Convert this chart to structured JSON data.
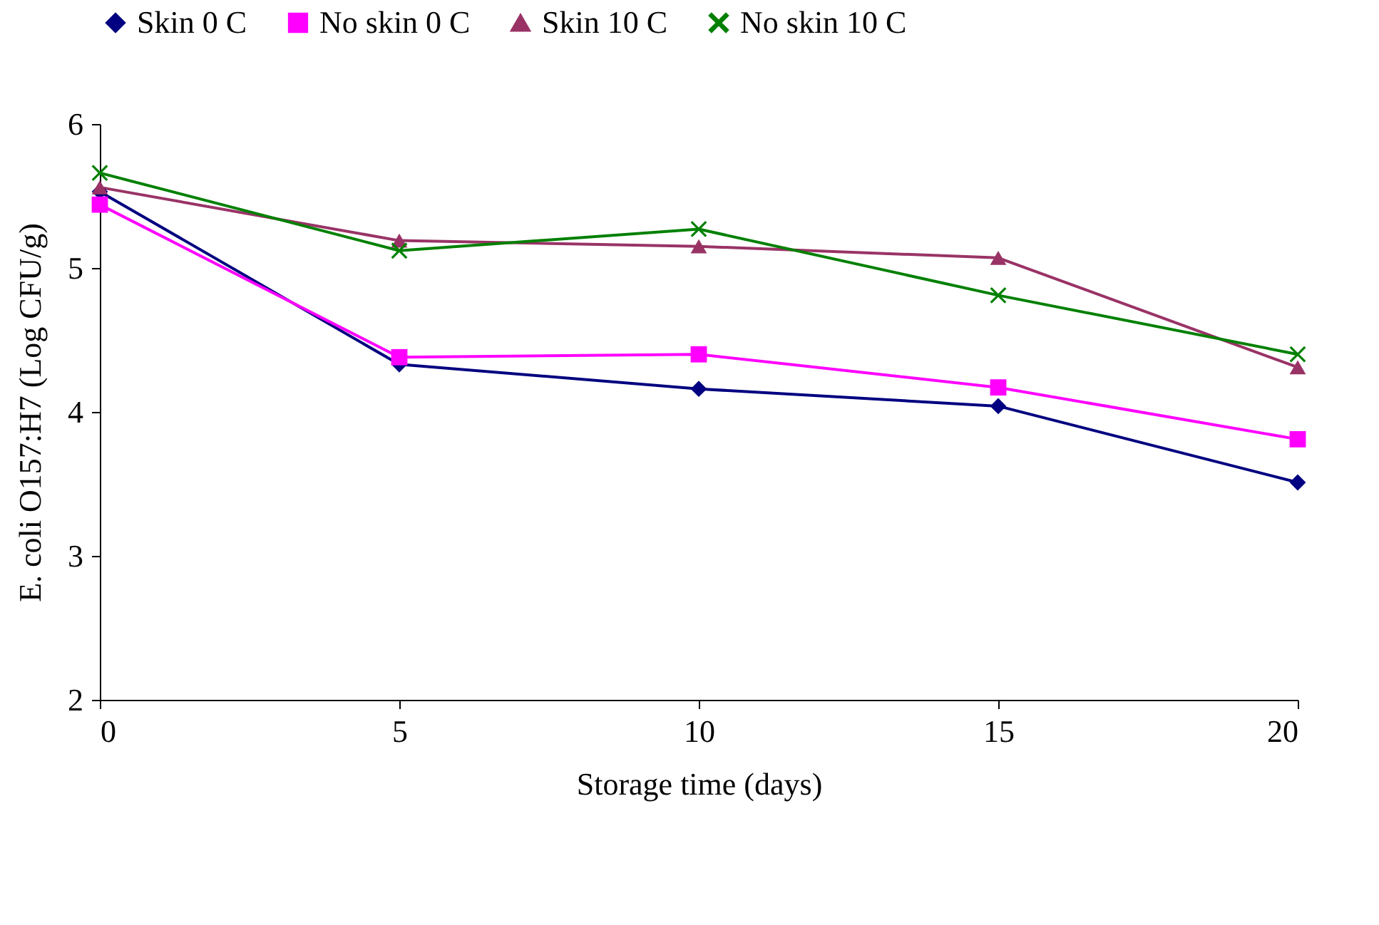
{
  "chart_data": {
    "type": "line",
    "xlabel": "Storage time (days)",
    "ylabel": "E. coli O157:H7 (Log CFU/g)",
    "x": [
      0,
      5,
      10,
      15,
      20
    ],
    "xlim": [
      0,
      20
    ],
    "xticks": [
      0,
      5,
      10,
      15,
      20
    ],
    "ylim": [
      2,
      6
    ],
    "yticks": [
      2,
      3,
      4,
      5,
      6
    ],
    "grid": false,
    "legend": "top",
    "line_style": "solid",
    "series": [
      {
        "name": "Skin 0 C",
        "color": "#000080",
        "marker": "diamond",
        "values": [
          5.53,
          4.33,
          4.16,
          4.04,
          3.51
        ]
      },
      {
        "name": "No skin 0 C",
        "color": "#ff00ff",
        "marker": "square",
        "values": [
          5.44,
          4.38,
          4.4,
          4.17,
          3.81
        ]
      },
      {
        "name": "Skin 10 C",
        "color": "#993366",
        "marker": "triangle",
        "values": [
          5.56,
          5.19,
          5.15,
          5.07,
          4.31
        ]
      },
      {
        "name": "No skin 10 C",
        "color": "#008000",
        "marker": "cross",
        "values": [
          5.66,
          5.12,
          5.27,
          4.81,
          4.4
        ]
      }
    ]
  }
}
